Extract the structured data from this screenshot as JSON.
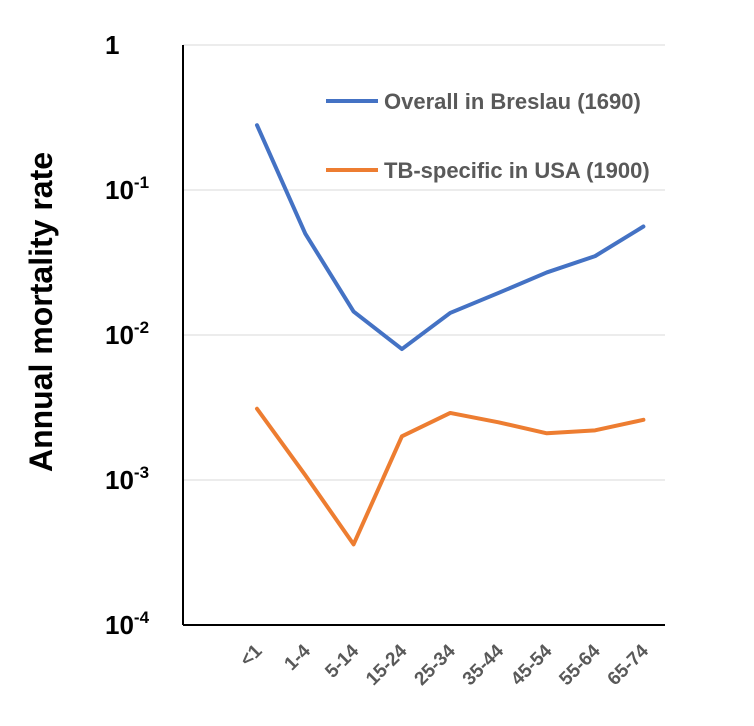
{
  "chart_data": {
    "type": "line",
    "title": "",
    "xlabel": "",
    "ylabel": "Annual mortality rate",
    "y_scale": "log",
    "ylim": [
      0.0001,
      1
    ],
    "grid": true,
    "legend_position": "top-right",
    "categories": [
      "<1",
      "1-4",
      "5-14",
      "15-24",
      "25-34",
      "35-44",
      "45-54",
      "55-64",
      "65-74"
    ],
    "y_ticks": [
      {
        "value": 1,
        "base": "1",
        "exponent": ""
      },
      {
        "value": 0.1,
        "base": "10",
        "exponent": "-1"
      },
      {
        "value": 0.01,
        "base": "10",
        "exponent": "-2"
      },
      {
        "value": 0.001,
        "base": "10",
        "exponent": "-3"
      },
      {
        "value": 0.0001,
        "base": "10",
        "exponent": "-4"
      }
    ],
    "series": [
      {
        "name": "Overall in Breslau (1690)",
        "color": "#4472C4",
        "values": [
          0.28,
          0.05,
          0.0145,
          0.008,
          0.0142,
          0.0195,
          0.027,
          0.035,
          0.056
        ]
      },
      {
        "name": "TB-specific in USA (1900)",
        "color": "#ED7D31",
        "values": [
          0.0031,
          0.00108,
          0.00036,
          0.002,
          0.0029,
          0.0025,
          0.0021,
          0.0022,
          0.0026
        ]
      }
    ]
  }
}
